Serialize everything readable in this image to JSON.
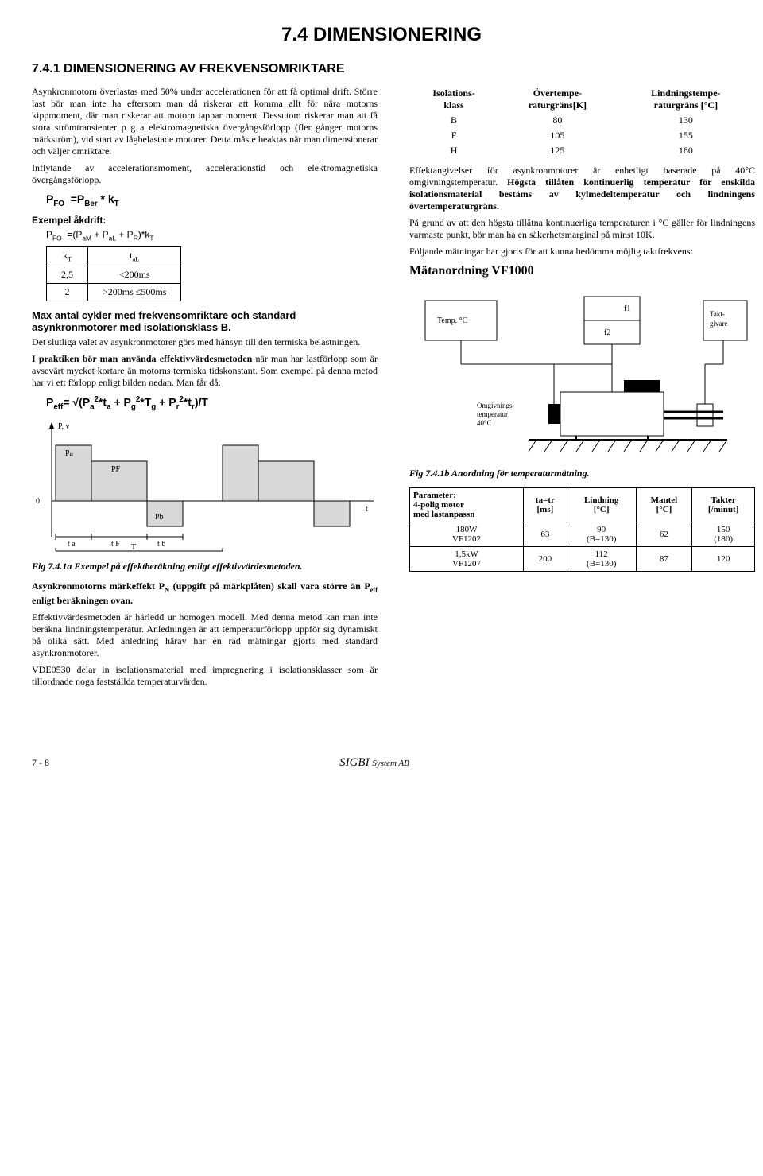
{
  "page": {
    "main_title": "7.4 DIMENSIONERING",
    "sub_title": "7.4.1 DIMENSIONERING AV FREKVENSOMRIKTARE"
  },
  "left": {
    "p1": "Asynkronmotorn överlastas med 50% under accelerationen för att få optimal drift. Större last bör man inte ha eftersom man då riskerar att komma allt för nära motorns kippmoment, där man riskerar att motorn tappar moment. Dessutom riskerar man att få stora strömtransienter p g a elektromagnetiska övergångsförlopp (fler gånger motorns märkström), vid start av lågbelastade motorer. Detta måste beaktas när man dimensionerar och väljer omriktare.",
    "p2": "Inflytande av accelerationsmoment, accelerationstid och elektromagnetiska övergångsförlopp.",
    "formula1_html": "P<sub>FO</sub>&nbsp;&nbsp;=P<sub>Ber</sub> * k<sub>T</sub>",
    "example_label": "Exempel åkdrift:",
    "formula2_html": "P<sub>FO</sub>&nbsp;&nbsp;=(P<sub>aM</sub> + P<sub>aL</sub> + P<sub>R</sub>)*k<sub>T</sub>",
    "small_table": {
      "headers": [
        "k_T",
        "t_aL"
      ],
      "rows": [
        [
          "2,5",
          "<200ms"
        ],
        [
          "2",
          ">200ms ≤500ms"
        ]
      ]
    },
    "sec_title1": "Max antal cykler med frekvensomriktare och standard asynkronmotorer med isolationsklass B.",
    "p3": "Det slutliga valet av asynkronmotorer görs med hänsyn till den termiska belastningen.",
    "p4_bold": "I praktiken bör man använda effektivvärdesmetoden",
    "p4_rest": " när man har lastförlopp som är avsevärt mycket kortare än motorns termiska tidskonstant. Som exempel på denna metod har vi ett förlopp enligt bilden nedan. Man får då:",
    "formula3_html": "P<sub>eff</sub>= √(P<sub>a</sub><sup>2</sup>*t<sub>a</sub> + P<sub>g</sub><sup>2</sup>*T<sub>g</sub> + P<sub>r</sub><sup>2</sup>*t<sub>r</sub>)/T",
    "figure_a": {
      "labels": {
        "yaxis": "P, v",
        "Pa": "Pa",
        "PF": "PF",
        "Pb": "Pb",
        "ta": "t a",
        "tF": "t F",
        "tb": "t b",
        "T": "T",
        "t": "t",
        "zero": "0"
      },
      "colors": {
        "stroke": "#000000",
        "fill": "#d8d8d8"
      }
    },
    "fig_a_caption": "Fig 7.4.1a Exempel på effektberäkning enligt effektivvärdesmetoden.",
    "p5_bold": "Asynkronmotorns märkeffekt P",
    "p5_sub": "N",
    "p5b": " (uppgift på märkplåten) skall vara större än P",
    "p5_sub2": "eff",
    "p5c": " enligt beräkningen ovan.",
    "p6": "Effektivvärdesmetoden är härledd ur homogen modell. Med denna metod kan man inte beräkna lindningstemperatur. Anledningen är att temperaturförlopp uppför sig dynamiskt på olika sätt. Med anledning härav har en rad mätningar gjorts med standard asynkronmotorer.",
    "p7": "VDE0530 delar in isolationsmaterial med impregnering i isolationsklasser som är tillordnade noga fastställda temperaturvärden."
  },
  "right": {
    "iso_table": {
      "headers": [
        "Isolations-\nklass",
        "Övertempe-\nraturgräns[K]",
        "Lindningstempe-\nraturgräns [°C]"
      ],
      "rows": [
        [
          "B",
          "80",
          "130"
        ],
        [
          "F",
          "105",
          "155"
        ],
        [
          "H",
          "125",
          "180"
        ]
      ]
    },
    "p1_a": "Effektangivelser för asynkronmotorer är enhetligt baserade på 40°C omgivningstemperatur.",
    "p1_bold": " Högsta tillåten kontinuerlig temperatur för enskilda isolationsmaterial bestäms av kylmedeltemperatur och lindningens övertemperaturgräns.",
    "p2": "På grund av att den högsta tillåtna kontinuerliga temperaturen i °C gäller för lindningens varmaste punkt, bör man ha en säkerhetsmarginal på minst 10K.",
    "p3": "Följande mätningar har gjorts för att kunna bedömma möjlig taktfrekvens:",
    "h3": "Mätanordning VF1000",
    "diagram": {
      "labels": {
        "temp": "Temp. °C",
        "f1": "f1",
        "f2": "f2",
        "takt": "Takt-\ngivare",
        "env": "Omgivnings-\ntemperatur\n40°C"
      },
      "colors": {
        "stroke": "#000000",
        "fill_black": "#000000",
        "fill_white": "#ffffff"
      }
    },
    "fig_b_caption": "Fig 7.4.1b Anordning för temperaturmätning.",
    "param_table": {
      "headers": [
        "Parameter:\n4-polig motor\nmed lastanpassn",
        "ta=tr\n[ms]",
        "Lindning\n[°C]",
        "Mantel\n[°C]",
        "Takter\n[/minut]"
      ],
      "rows": [
        [
          "180W\nVF1202",
          "63",
          "90\n(B=130)",
          "62",
          "150\n(180)"
        ],
        [
          "1,5kW\nVF1207",
          "200",
          "112\n(B=130)",
          "87",
          "120"
        ]
      ]
    }
  },
  "footer": {
    "page_num": "7 - 8",
    "brand": "SIGBI",
    "brand_suffix": "System AB"
  }
}
